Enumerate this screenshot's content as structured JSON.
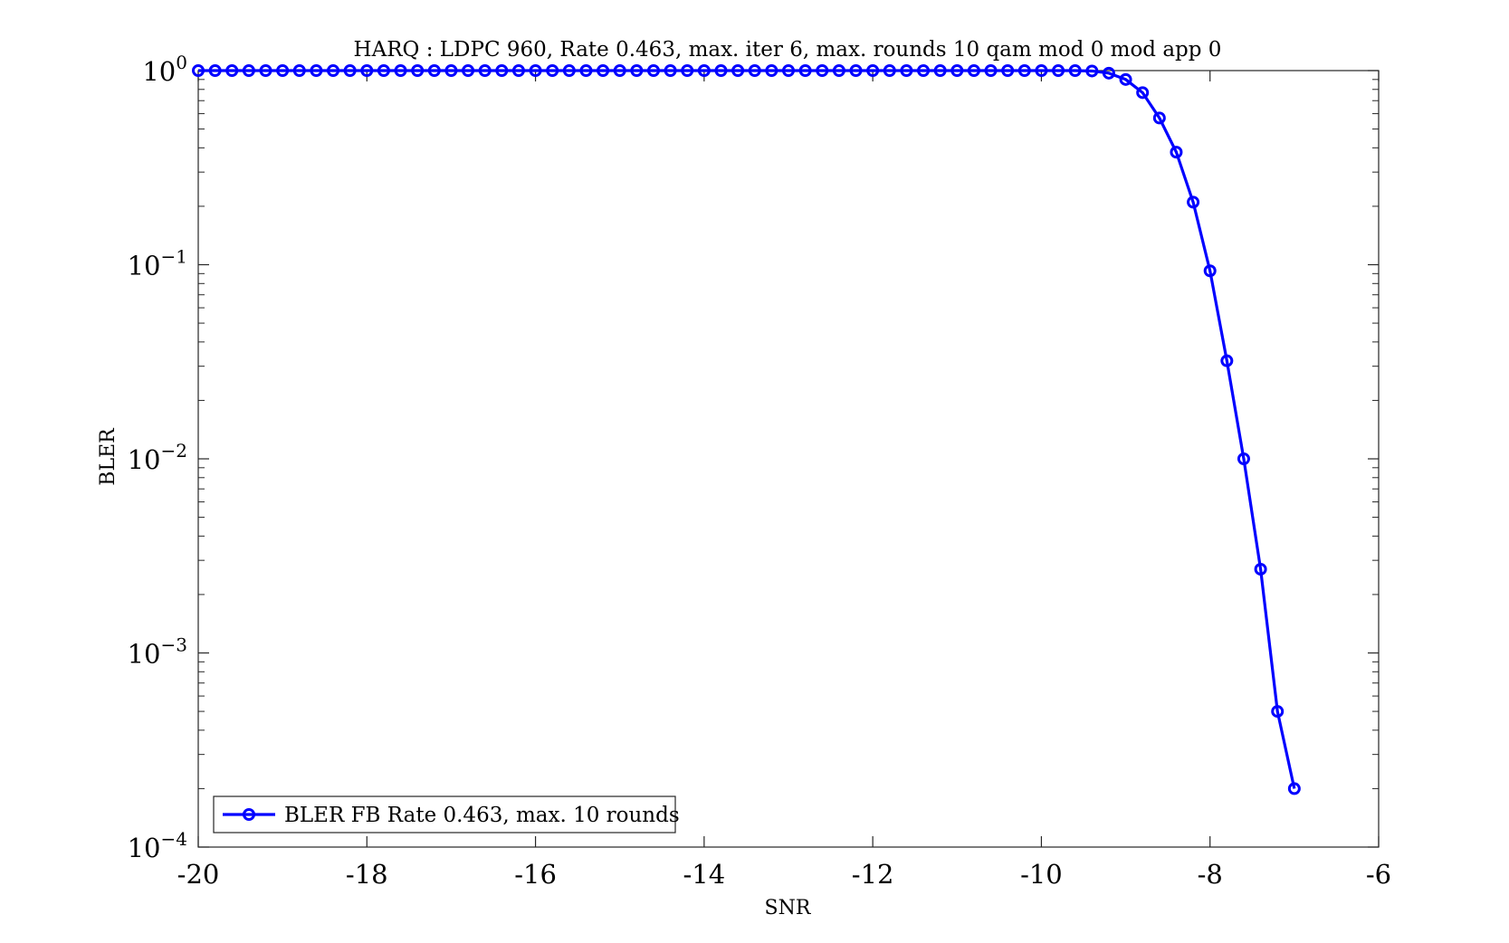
{
  "chart_data": {
    "type": "line",
    "title": "HARQ : LDPC 960, Rate 0.463, max. iter 6, max. rounds 10 qam mod 0 mod app 0",
    "xlabel": "SNR",
    "ylabel": "BLER",
    "xlim": [
      -20,
      -6
    ],
    "ylim": [
      0.0001,
      1
    ],
    "yscale": "log",
    "grid": false,
    "legend_position": "bottom-left",
    "x_ticks": [
      "-20",
      "-18",
      "-16",
      "-14",
      "-12",
      "-10",
      "-8",
      "-6"
    ],
    "y_ticks": [
      {
        "base": "10",
        "exp": "0",
        "value": 1
      },
      {
        "base": "10",
        "exp": "−1",
        "value": 0.1
      },
      {
        "base": "10",
        "exp": "−2",
        "value": 0.01
      },
      {
        "base": "10",
        "exp": "−3",
        "value": 0.001
      },
      {
        "base": "10",
        "exp": "−4",
        "value": 0.0001
      }
    ],
    "series": [
      {
        "name": "BLER FB Rate 0.463, max. 10 rounds",
        "color": "#0000ff",
        "marker": "circle",
        "x": [
          -20,
          -19.8,
          -19.6,
          -19.4,
          -19.2,
          -19,
          -18.8,
          -18.6,
          -18.4,
          -18.2,
          -18,
          -17.8,
          -17.6,
          -17.4,
          -17.2,
          -17,
          -16.8,
          -16.6,
          -16.4,
          -16.2,
          -16,
          -15.8,
          -15.6,
          -15.4,
          -15.2,
          -15,
          -14.8,
          -14.6,
          -14.4,
          -14.2,
          -14,
          -13.8,
          -13.6,
          -13.4,
          -13.2,
          -13,
          -12.8,
          -12.6,
          -12.4,
          -12.2,
          -12,
          -11.8,
          -11.6,
          -11.4,
          -11.2,
          -11,
          -10.8,
          -10.6,
          -10.4,
          -10.2,
          -10,
          -9.8,
          -9.6,
          -9.4,
          -9.2,
          -9,
          -8.8,
          -8.6,
          -8.4,
          -8.2,
          -8,
          -7.8,
          -7.6,
          -7.4,
          -7.2,
          -7
        ],
        "y": [
          1,
          1,
          1,
          1,
          1,
          1,
          1,
          1,
          1,
          1,
          1,
          1,
          1,
          1,
          1,
          1,
          1,
          1,
          1,
          1,
          1,
          1,
          1,
          1,
          1,
          1,
          1,
          1,
          1,
          1,
          1,
          1,
          1,
          1,
          1,
          1,
          1,
          1,
          1,
          1,
          1,
          1,
          1,
          1,
          1,
          1,
          1,
          1,
          1,
          1,
          1,
          1,
          1,
          0.995,
          0.97,
          0.9,
          0.77,
          0.57,
          0.38,
          0.21,
          0.093,
          0.032,
          0.01,
          0.0027,
          0.0005,
          0.0002
        ]
      }
    ]
  }
}
